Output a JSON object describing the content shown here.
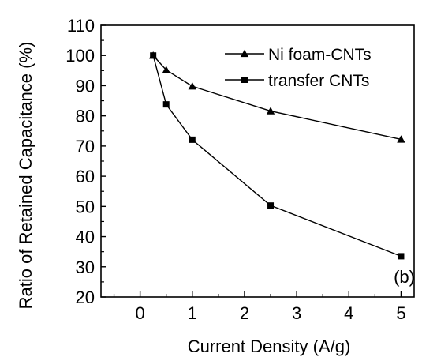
{
  "chart_data": {
    "type": "line",
    "xlabel": "Current Density (A/g)",
    "ylabel": "Ratio of Retained Capacitance (%)",
    "xlim": [
      -0.75,
      5.25
    ],
    "ylim": [
      20,
      110
    ],
    "xticks": [
      0,
      1,
      2,
      3,
      4,
      5
    ],
    "yticks": [
      20,
      30,
      40,
      50,
      60,
      70,
      80,
      90,
      100,
      110
    ],
    "grid": false,
    "legend_position": "top-right",
    "annotation": "(b)",
    "series": [
      {
        "name": "Ni foam-CNTs",
        "marker": "triangle",
        "color": "#000000",
        "x": [
          0.25,
          0.5,
          1,
          2.5,
          5
        ],
        "y": [
          100,
          95.2,
          89.8,
          81.6,
          72.2
        ]
      },
      {
        "name": "transfer CNTs",
        "marker": "square",
        "color": "#000000",
        "x": [
          0.25,
          0.5,
          1,
          2.5,
          5
        ],
        "y": [
          100,
          83.8,
          72.1,
          50.3,
          33.5
        ]
      }
    ]
  }
}
